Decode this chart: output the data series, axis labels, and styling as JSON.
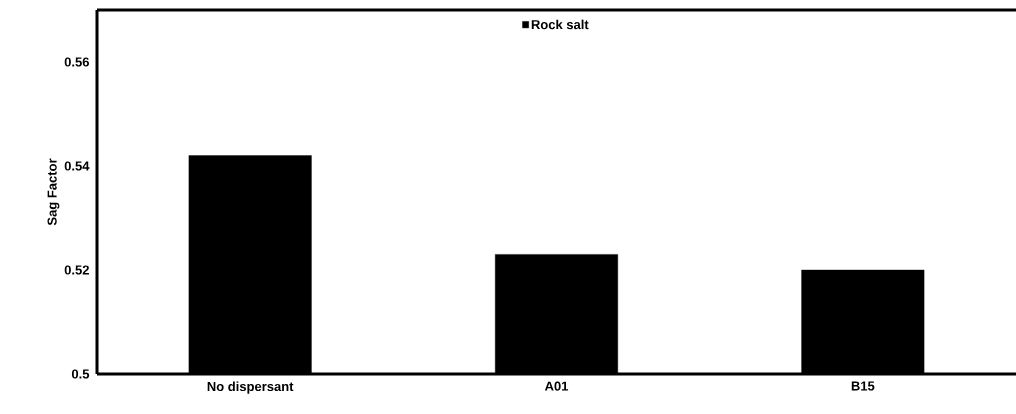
{
  "chart_data": {
    "type": "bar",
    "ylabel": "Sag Factor",
    "categories": [
      "No dispersant",
      "A01",
      "B15"
    ],
    "series": [
      {
        "name": "Rock salt",
        "color": "#000000",
        "values": [
          0.542,
          0.523,
          0.52
        ]
      }
    ],
    "ylim": [
      0.5,
      0.57
    ],
    "yticks": [
      0.5,
      0.52,
      0.54,
      0.56
    ],
    "grid": false,
    "legend": "top"
  }
}
